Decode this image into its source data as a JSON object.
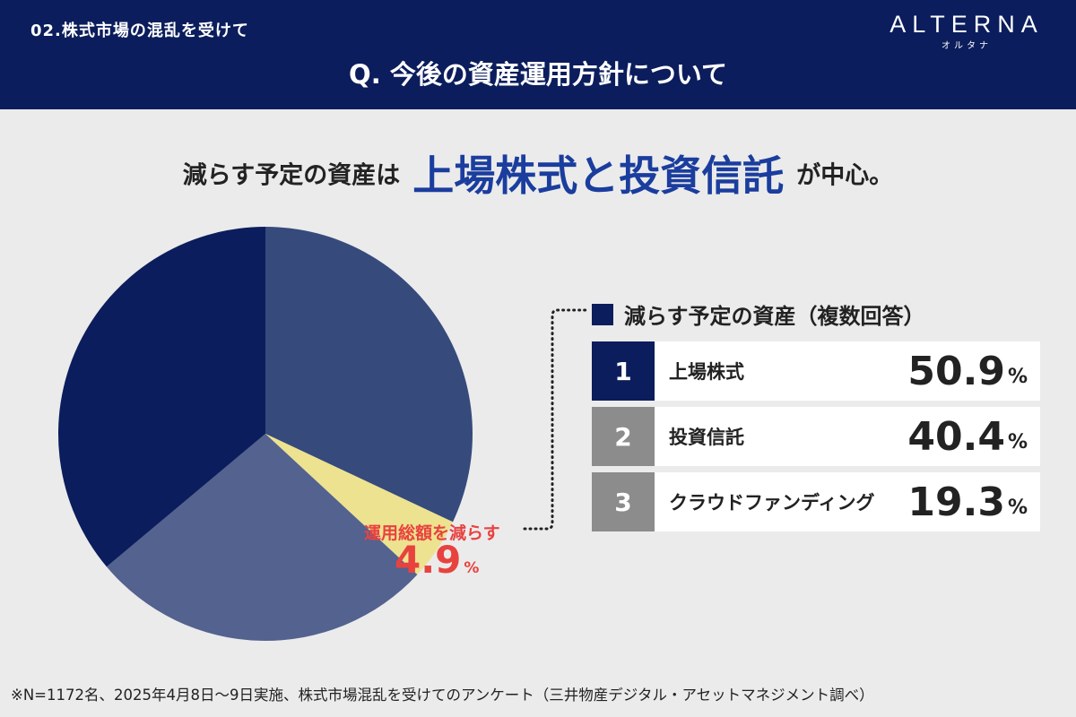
{
  "header": {
    "section": "02.株式市場の混乱を受けて",
    "question": "Q. 今後の資産運用方針について",
    "logo_text": "ALTERNA",
    "logo_kana": "オルタナ",
    "bg_color": "#0b1d5c"
  },
  "headline": {
    "pre": "減らす予定の資産は",
    "highlight": "上場株式と投資信託",
    "post": "が中心。",
    "highlight_color": "#1a3d9e"
  },
  "chart_data": {
    "type": "pie",
    "slices": [
      {
        "value": 32.0,
        "color": "#364a7c"
      },
      {
        "value": 4.9,
        "color": "#ede28f",
        "label": "運用総額を減らす",
        "percent_text": "4.9",
        "unit": "%"
      },
      {
        "value": 27.0,
        "color": "#53628f"
      },
      {
        "value": 36.1,
        "color": "#0b1d5c"
      }
    ],
    "callout_color": "#e8423f"
  },
  "ranking": {
    "title": "減らす予定の資産（複数回答）",
    "items": [
      {
        "rank": "1",
        "label": "上場株式",
        "value": "50.9",
        "unit": "%",
        "color": "#0b1d5c"
      },
      {
        "rank": "2",
        "label": "投資信託",
        "value": "40.4",
        "unit": "%",
        "color": "#8c8c8c"
      },
      {
        "rank": "3",
        "label": "クラウドファンディング",
        "value": "19.3",
        "unit": "%",
        "color": "#8c8c8c"
      }
    ]
  },
  "footnote": "※N=1172名、2025年4月8日〜9日実施、株式市場混乱を受けてのアンケート（三井物産デジタル・アセットマネジメント調べ）"
}
